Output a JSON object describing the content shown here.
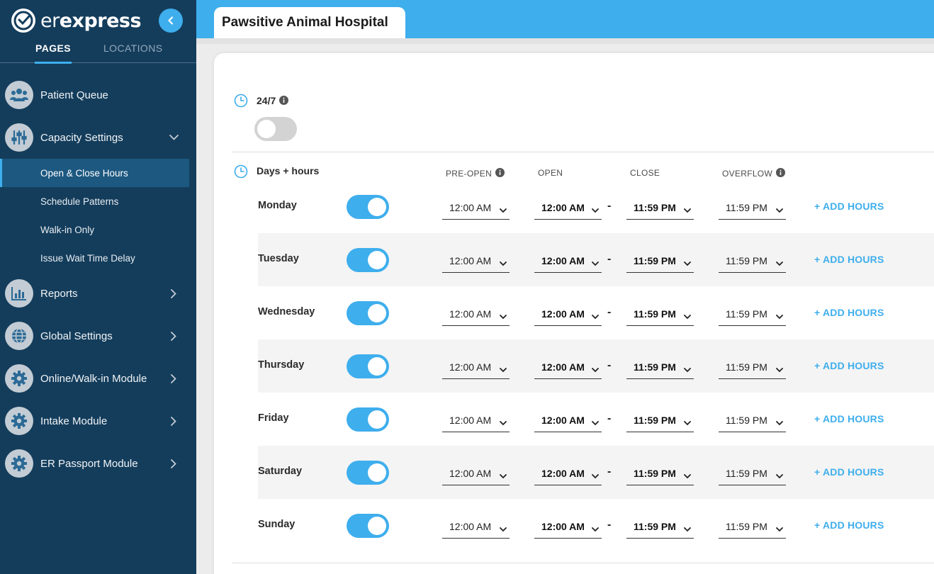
{
  "sidebar": {
    "brand": {
      "light": "er",
      "bold": "express"
    },
    "tabs": {
      "pages": "PAGES",
      "locations": "LOCATIONS"
    },
    "items": [
      {
        "label": "Patient Queue",
        "icon": "users-icon"
      },
      {
        "label": "Capacity Settings",
        "icon": "sliders-icon",
        "expanded": true
      },
      {
        "label": "Reports",
        "icon": "chart-icon"
      },
      {
        "label": "Global Settings",
        "icon": "globe-icon"
      },
      {
        "label": "Online/Walk-in Module",
        "icon": "gear-icon"
      },
      {
        "label": "Intake Module",
        "icon": "gear-icon"
      },
      {
        "label": "ER Passport Module",
        "icon": "gear-icon"
      }
    ],
    "subitems": [
      {
        "label": "Open & Close Hours",
        "active": true
      },
      {
        "label": "Schedule Patterns"
      },
      {
        "label": "Walk-in Only"
      },
      {
        "label": "Issue Wait Time Delay"
      }
    ]
  },
  "header": {
    "title": "Pawsitive Animal Hospital"
  },
  "always_open": {
    "label": "24/7",
    "enabled": false
  },
  "hours": {
    "title": "Days + hours",
    "columns": {
      "pre_open": "PRE-OPEN",
      "open": "OPEN",
      "close": "CLOSE",
      "overflow": "OVERFLOW"
    },
    "add_label": "+ ADD HOURS",
    "days": [
      {
        "name": "Monday",
        "enabled": true,
        "pre_open": "12:00 AM",
        "open": "12:00 AM",
        "close": "11:59 PM",
        "overflow": "11:59 PM"
      },
      {
        "name": "Tuesday",
        "enabled": true,
        "pre_open": "12:00 AM",
        "open": "12:00 AM",
        "close": "11:59 PM",
        "overflow": "11:59 PM"
      },
      {
        "name": "Wednesday",
        "enabled": true,
        "pre_open": "12:00 AM",
        "open": "12:00 AM",
        "close": "11:59 PM",
        "overflow": "11:59 PM"
      },
      {
        "name": "Thursday",
        "enabled": true,
        "pre_open": "12:00 AM",
        "open": "12:00 AM",
        "close": "11:59 PM",
        "overflow": "11:59 PM"
      },
      {
        "name": "Friday",
        "enabled": true,
        "pre_open": "12:00 AM",
        "open": "12:00 AM",
        "close": "11:59 PM",
        "overflow": "11:59 PM"
      },
      {
        "name": "Saturday",
        "enabled": true,
        "pre_open": "12:00 AM",
        "open": "12:00 AM",
        "close": "11:59 PM",
        "overflow": "11:59 PM"
      },
      {
        "name": "Sunday",
        "enabled": true,
        "pre_open": "12:00 AM",
        "open": "12:00 AM",
        "close": "11:59 PM",
        "overflow": "11:59 PM"
      }
    ]
  },
  "colors": {
    "accent": "#3eaeed",
    "sidebar": "#143d5c",
    "active_sub": "#1c5880"
  }
}
